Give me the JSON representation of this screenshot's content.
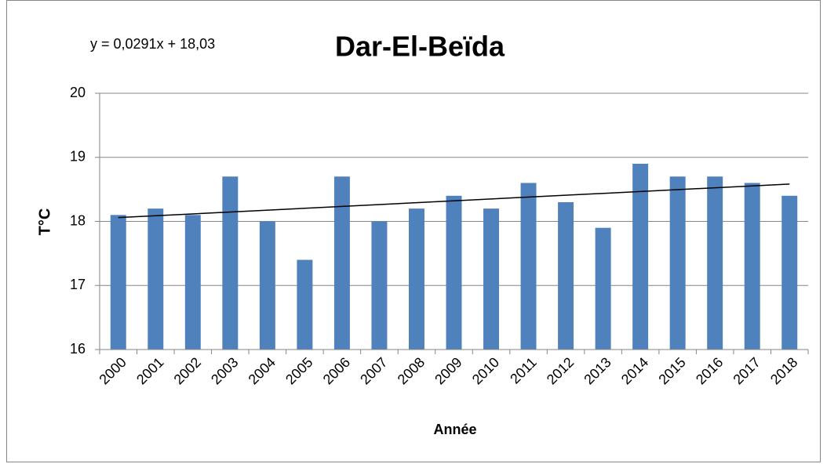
{
  "chart_data": {
    "type": "bar",
    "title": "Dar-El-Beïda",
    "annotation": "y = 0,0291x + 18,03",
    "trendline": {
      "slope": 0.0291,
      "intercept": 18.03
    },
    "xlabel": "Année",
    "ylabel": "T°C",
    "categories": [
      "2000",
      "2001",
      "2002",
      "2003",
      "2004",
      "2005",
      "2006",
      "2007",
      "2008",
      "2009",
      "2010",
      "2011",
      "2012",
      "2013",
      "2014",
      "2015",
      "2016",
      "2017",
      "2018"
    ],
    "values": [
      18.1,
      18.2,
      18.1,
      18.7,
      18.0,
      17.4,
      18.7,
      18.0,
      18.2,
      18.4,
      18.2,
      18.6,
      18.3,
      17.9,
      18.9,
      18.7,
      18.7,
      18.6,
      18.4
    ],
    "color": "#4f81bd",
    "ylim": [
      16,
      20
    ],
    "yticks": [
      16,
      17,
      18,
      19,
      20
    ],
    "grid": true
  }
}
